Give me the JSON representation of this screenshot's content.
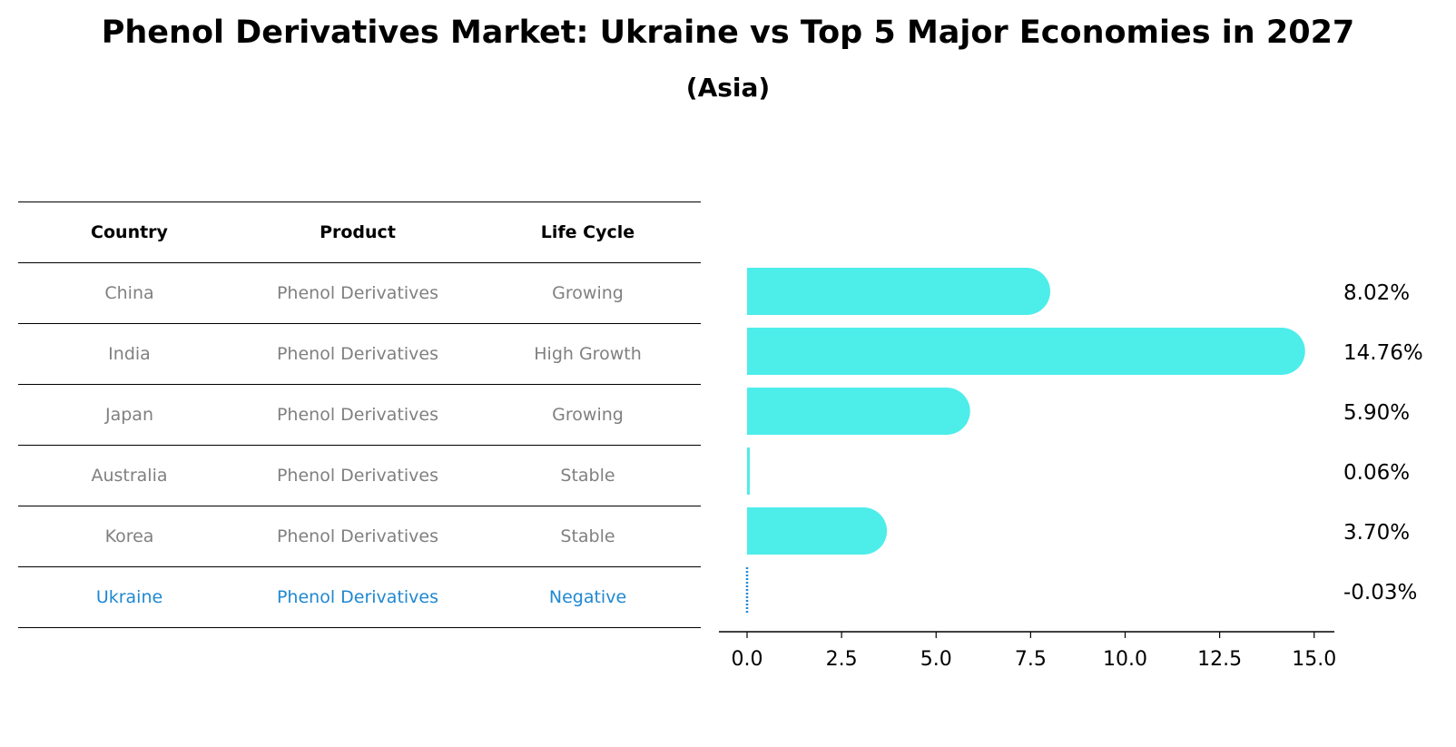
{
  "title": "Phenol Derivatives Market: Ukraine vs Top 5 Major Economies in 2027",
  "subtitle": "(Asia)",
  "table": {
    "headers": [
      "Country",
      "Product",
      "Life Cycle"
    ],
    "rows": [
      {
        "country": "China",
        "product": "Phenol Derivatives",
        "life_cycle": "Growing"
      },
      {
        "country": "India",
        "product": "Phenol Derivatives",
        "life_cycle": "High Growth"
      },
      {
        "country": "Japan",
        "product": "Phenol Derivatives",
        "life_cycle": "Growing"
      },
      {
        "country": "Australia",
        "product": "Phenol Derivatives",
        "life_cycle": "Stable"
      },
      {
        "country": "Korea",
        "product": "Phenol Derivatives",
        "life_cycle": "Stable"
      },
      {
        "country": "Ukraine",
        "product": "Phenol Derivatives",
        "life_cycle": "Negative"
      }
    ]
  },
  "chart_data": {
    "type": "bar",
    "orientation": "horizontal",
    "categories": [
      "China",
      "India",
      "Japan",
      "Australia",
      "Korea",
      "Ukraine"
    ],
    "values": [
      8.02,
      14.76,
      5.9,
      0.06,
      3.7,
      -0.03
    ],
    "value_labels": [
      "8.02%",
      "14.76%",
      "5.90%",
      "0.06%",
      "3.70%",
      "-0.03%"
    ],
    "xlim": [
      -0.75,
      15.5
    ],
    "xticks": [
      0.0,
      2.5,
      5.0,
      7.5,
      10.0,
      12.5,
      15.0
    ],
    "xtick_labels": [
      "0.0",
      "2.5",
      "5.0",
      "7.5",
      "10.0",
      "12.5",
      "15.0"
    ],
    "highlight": "Ukraine",
    "colors": {
      "bar": "#4dedea",
      "highlight": "#1f88d2",
      "text": "#000000",
      "muted": "#808080"
    }
  }
}
